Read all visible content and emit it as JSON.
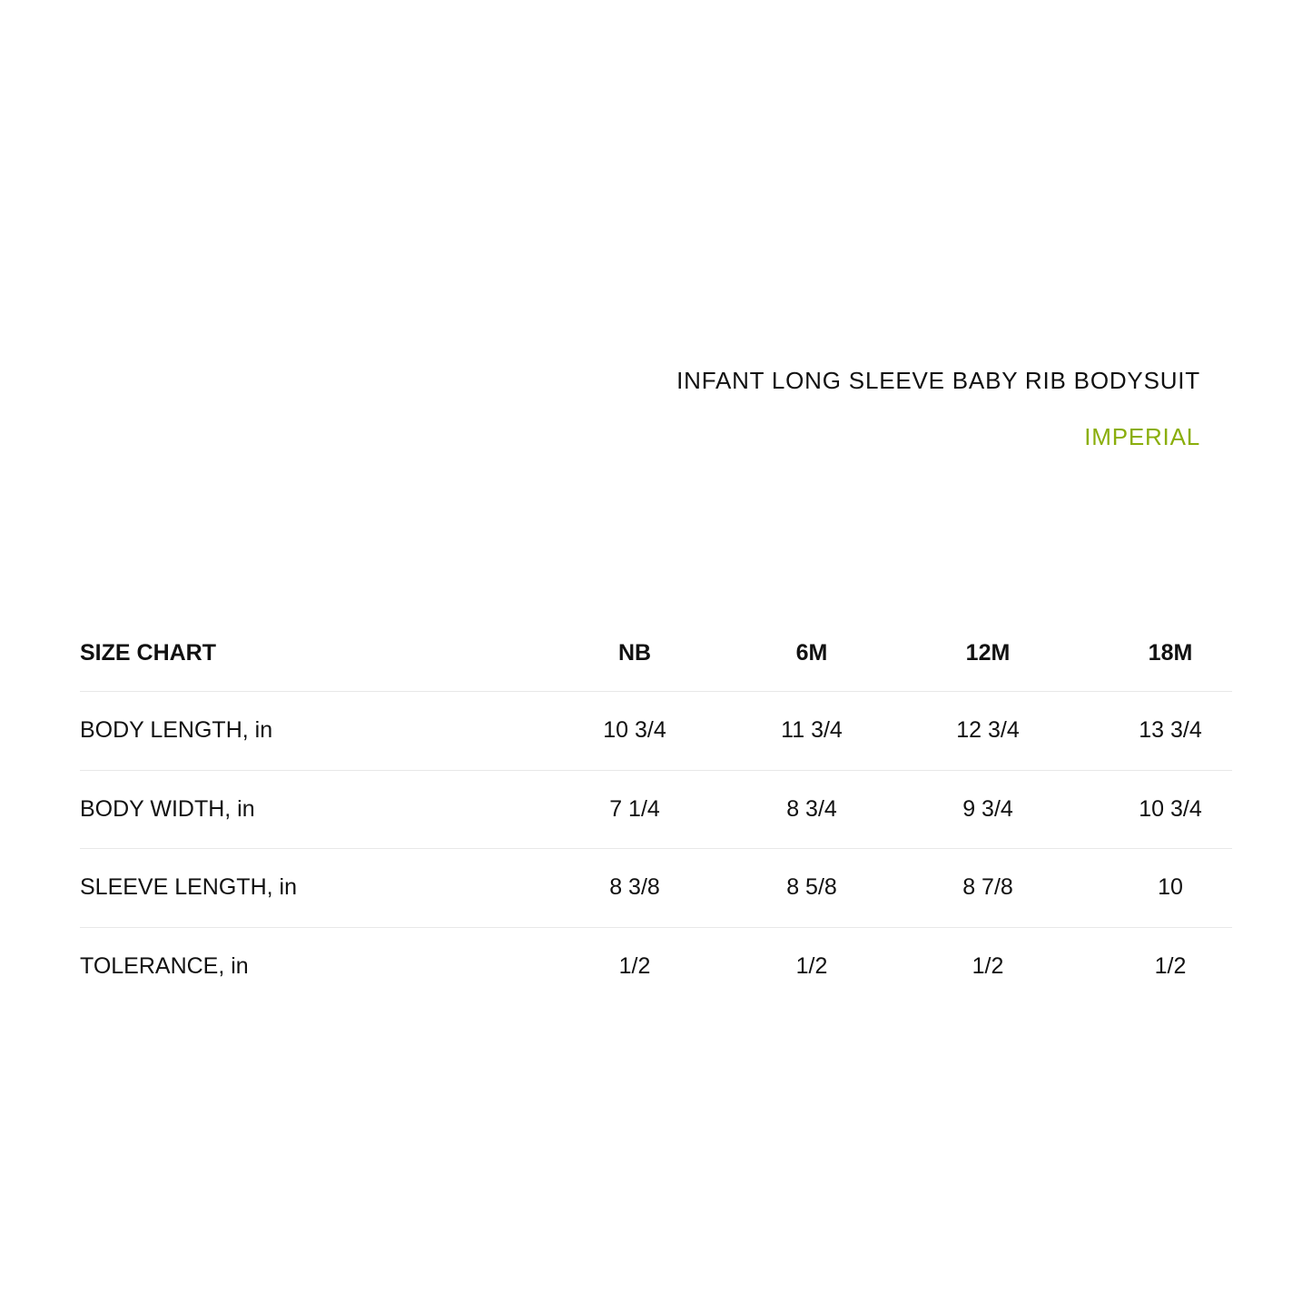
{
  "header": {
    "title": "INFANT LONG SLEEVE BABY RIB BODYSUIT",
    "unit_system": "IMPERIAL",
    "accent_color": "#8aae0b"
  },
  "table": {
    "columns": [
      "SIZE CHART",
      "NB",
      "6M",
      "12M",
      "18M"
    ],
    "rows": [
      {
        "label": "BODY LENGTH, in",
        "values": [
          "10 3/4",
          "11 3/4",
          "12 3/4",
          "13 3/4"
        ]
      },
      {
        "label": "BODY WIDTH, in",
        "values": [
          "7 1/4",
          "8 3/4",
          "9 3/4",
          "10 3/4"
        ]
      },
      {
        "label": "SLEEVE LENGTH, in",
        "values": [
          "8 3/8",
          "8 5/8",
          "8 7/8",
          "10"
        ]
      },
      {
        "label": "TOLERANCE, in",
        "values": [
          "1/2",
          "1/2",
          "1/2",
          "1/2"
        ]
      }
    ]
  }
}
